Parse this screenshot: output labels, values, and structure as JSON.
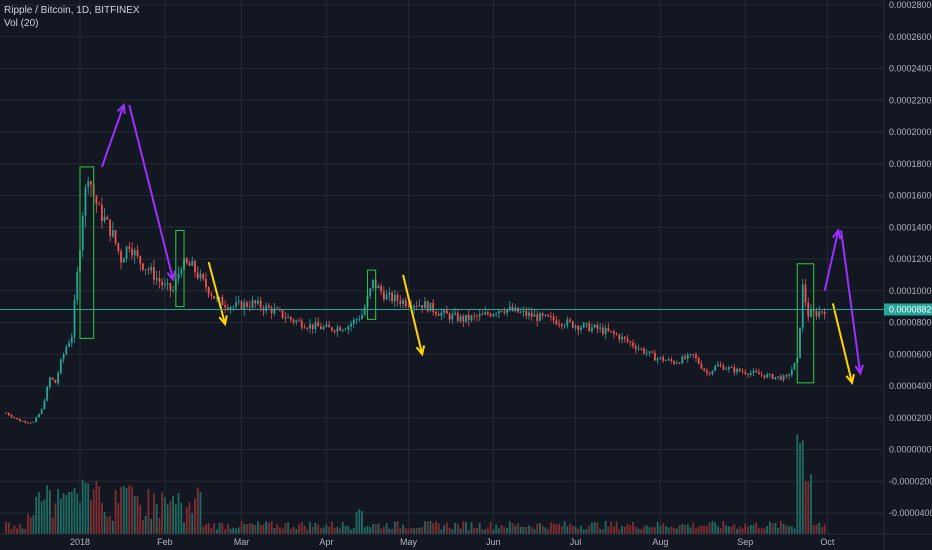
{
  "header": {
    "symbol_line": "Ripple / Bitcoin, 1D, BITFINEX",
    "volume_line": "Vol (20)"
  },
  "colors": {
    "background": "#131722",
    "grid": "#262a35",
    "up": "#26a69a",
    "down": "#ef5350",
    "volume_up": "#1e6b63",
    "volume_down": "#7f2f32",
    "price_line": "#26a69a",
    "annotation_box": "#2ecc40",
    "arrow_purple": "#9b30ff",
    "arrow_yellow": "#ffd600",
    "axis_text": "#b2b5be"
  },
  "chart_data": {
    "type": "candlestick",
    "title": "Ripple / Bitcoin, 1D, BITFINEX",
    "indicator": "Vol (20)",
    "y_axis_labels": [
      "0.000280000",
      "0.000260000",
      "0.000240000",
      "0.000220000",
      "0.000200000",
      "0.000180000",
      "0.000160000",
      "0.000140000",
      "0.000120000",
      "0.000100000",
      "0.000080000",
      "0.000060000",
      "0.000040000",
      "0.000020000",
      "0.000000000",
      "-0.000020000",
      "-0.000040000"
    ],
    "x_axis_labels": [
      "2018",
      "Feb",
      "Mar",
      "Apr",
      "May",
      "Jun",
      "Jul",
      "Aug",
      "Sep",
      "Oct"
    ],
    "last_price_label": "0.00008820",
    "last_price": 8.82e-05,
    "ylim": [
      -5e-05,
      0.00028
    ],
    "price_path": [
      [
        "2017-12-05",
        2.3e-05
      ],
      [
        "2017-12-10",
        1.8e-05
      ],
      [
        "2017-12-15",
        1.7e-05
      ],
      [
        "2017-12-18",
        2.5e-05
      ],
      [
        "2017-12-21",
        4.5e-05
      ],
      [
        "2017-12-23",
        4.2e-05
      ],
      [
        "2017-12-25",
        5.5e-05
      ],
      [
        "2017-12-27",
        6.5e-05
      ],
      [
        "2017-12-29",
        7.2e-05
      ],
      [
        "2017-12-31",
        0.00011
      ],
      [
        "2018-01-02",
        0.00015
      ],
      [
        "2018-01-04",
        0.000175
      ],
      [
        "2018-01-06",
        0.00016
      ],
      [
        "2018-01-08",
        0.00015
      ],
      [
        "2018-01-10",
        0.000145
      ],
      [
        "2018-01-13",
        0.000135
      ],
      [
        "2018-01-16",
        0.00012
      ],
      [
        "2018-01-19",
        0.00013
      ],
      [
        "2018-01-22",
        0.00012
      ],
      [
        "2018-01-25",
        0.000115
      ],
      [
        "2018-01-28",
        0.00011
      ],
      [
        "2018-02-01",
        0.000102
      ],
      [
        "2018-02-04",
        0.0001
      ],
      [
        "2018-02-07",
        0.000117
      ],
      [
        "2018-02-11",
        0.000115
      ],
      [
        "2018-02-15",
        0.000105
      ],
      [
        "2018-02-20",
        9.4e-05
      ],
      [
        "2018-02-26",
        9e-05
      ],
      [
        "2018-03-05",
        9.2e-05
      ],
      [
        "2018-03-12",
        8.8e-05
      ],
      [
        "2018-03-19",
        8.2e-05
      ],
      [
        "2018-03-26",
        7.8e-05
      ],
      [
        "2018-04-02",
        7.6e-05
      ],
      [
        "2018-04-09",
        7.8e-05
      ],
      [
        "2018-04-14",
        8.5e-05
      ],
      [
        "2018-04-18",
        0.000105
      ],
      [
        "2018-04-23",
        9.6e-05
      ],
      [
        "2018-04-30",
        9.3e-05
      ],
      [
        "2018-05-07",
        9.1e-05
      ],
      [
        "2018-05-14",
        8.5e-05
      ],
      [
        "2018-05-21",
        8.2e-05
      ],
      [
        "2018-05-28",
        8.4e-05
      ],
      [
        "2018-06-04",
        8.9e-05
      ],
      [
        "2018-06-11",
        8.6e-05
      ],
      [
        "2018-06-18",
        8.3e-05
      ],
      [
        "2018-06-25",
        8.1e-05
      ],
      [
        "2018-07-02",
        7.8e-05
      ],
      [
        "2018-07-09",
        7.6e-05
      ],
      [
        "2018-07-16",
        7.2e-05
      ],
      [
        "2018-07-23",
        6.5e-05
      ],
      [
        "2018-07-30",
        5.8e-05
      ],
      [
        "2018-08-06",
        5.5e-05
      ],
      [
        "2018-08-13",
        5.9e-05
      ],
      [
        "2018-08-18",
        4.8e-05
      ],
      [
        "2018-08-22",
        5.3e-05
      ],
      [
        "2018-08-28",
        5e-05
      ],
      [
        "2018-09-04",
        4.8e-05
      ],
      [
        "2018-09-10",
        4.6e-05
      ],
      [
        "2018-09-16",
        4.5e-05
      ],
      [
        "2018-09-20",
        5.6e-05
      ],
      [
        "2018-09-22",
        0.000102
      ],
      [
        "2018-09-24",
        8.5e-05
      ],
      [
        "2018-09-27",
        8.6e-05
      ],
      [
        "2018-09-30",
        8.82e-05
      ]
    ],
    "volume_spikes": [
      [
        "2017-12-20",
        0.35
      ],
      [
        "2017-12-29",
        0.4
      ],
      [
        "2018-01-03",
        0.55
      ],
      [
        "2018-01-07",
        0.5
      ],
      [
        "2018-01-17",
        0.45
      ],
      [
        "2018-02-06",
        0.3
      ],
      [
        "2018-04-13",
        0.25
      ],
      [
        "2018-09-21",
        1.0
      ],
      [
        "2018-09-24",
        0.55
      ]
    ],
    "annotations": {
      "green_boxes": [
        {
          "from": "2018-01-01",
          "to": "2018-01-06",
          "low": 7e-05,
          "high": 0.000178
        },
        {
          "from": "2018-02-05",
          "to": "2018-02-08",
          "low": 9e-05,
          "high": 0.000138
        },
        {
          "from": "2018-04-16",
          "to": "2018-04-19",
          "low": 8.2e-05,
          "high": 0.000113
        },
        {
          "from": "2018-09-20",
          "to": "2018-09-26",
          "low": 4.2e-05,
          "high": 0.000117
        }
      ],
      "purple_arrows": [
        {
          "from": [
            "2018-01-09",
            0.000178
          ],
          "to": [
            "2018-01-17",
            0.000217
          ]
        },
        {
          "from": [
            "2018-01-19",
            0.000217
          ],
          "to": [
            "2018-02-04",
            0.000107
          ]
        },
        {
          "from": [
            "2018-09-30",
            0.0001
          ],
          "to": [
            "2018-10-05",
            0.000138
          ]
        },
        {
          "from": [
            "2018-10-06",
            0.000138
          ],
          "to": [
            "2018-10-13",
            4.8e-05
          ]
        }
      ],
      "yellow_arrows": [
        {
          "from": [
            "2018-02-17",
            0.000118
          ],
          "to": [
            "2018-02-23",
            7.9e-05
          ]
        },
        {
          "from": [
            "2018-04-29",
            0.00011
          ],
          "to": [
            "2018-05-06",
            6e-05
          ]
        },
        {
          "from": [
            "2018-10-03",
            9.2e-05
          ],
          "to": [
            "2018-10-10",
            4.2e-05
          ]
        }
      ]
    }
  }
}
